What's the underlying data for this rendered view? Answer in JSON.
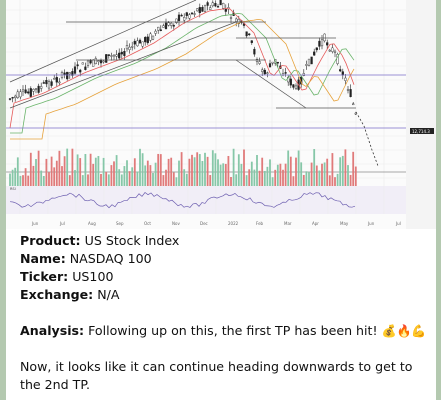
{
  "chart_data": {
    "type": "candlestick",
    "x_tick_labels": [
      "Jun",
      "Jul",
      "Aug",
      "Sep",
      "Oct",
      "Nov",
      "Dec",
      "2022",
      "Feb",
      "Mar",
      "Apr",
      "May",
      "Jun",
      "Jul"
    ],
    "indicator_label": "RSI",
    "price_badge": "12,714.3"
  },
  "message": {
    "product_label": "Product:",
    "product_value": "US Stock Index",
    "name_label": "Name:",
    "name_value": "NASDAQ 100",
    "ticker_label": "Ticker:",
    "ticker_value": "US100",
    "exchange_label": "Exchange:",
    "exchange_value": "N/A",
    "analysis_label": "Analysis:",
    "analysis_text": "Following up on this, the first TP has been hit!",
    "analysis_emojis": "💰🔥💪",
    "followup_text": "Now, it looks like it can continue heading downwards to get to the 2nd TP."
  }
}
